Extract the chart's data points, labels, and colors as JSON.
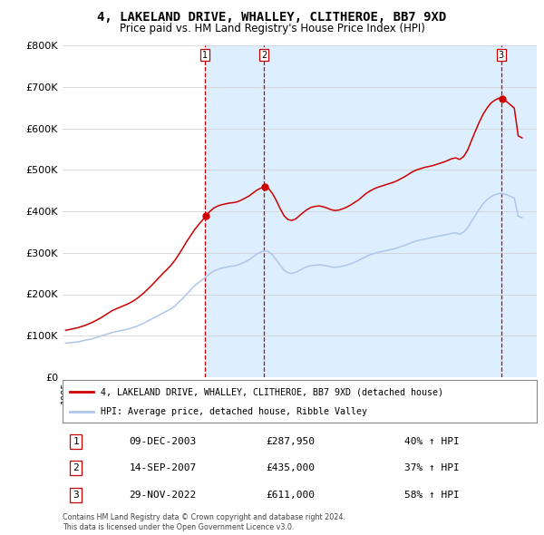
{
  "title": "4, LAKELAND DRIVE, WHALLEY, CLITHEROE, BB7 9XD",
  "subtitle": "Price paid vs. HM Land Registry's House Price Index (HPI)",
  "legend_property": "4, LAKELAND DRIVE, WHALLEY, CLITHEROE, BB7 9XD (detached house)",
  "legend_hpi": "HPI: Average price, detached house, Ribble Valley",
  "footer1": "Contains HM Land Registry data © Crown copyright and database right 2024.",
  "footer2": "This data is licensed under the Open Government Licence v3.0.",
  "transactions": [
    {
      "num": 1,
      "date": "09-DEC-2003",
      "price": "£287,950",
      "hpi": "40% ↑ HPI",
      "year": 2003.92
    },
    {
      "num": 2,
      "date": "14-SEP-2007",
      "price": "£435,000",
      "hpi": "37% ↑ HPI",
      "year": 2007.71
    },
    {
      "num": 3,
      "date": "29-NOV-2022",
      "price": "£611,000",
      "hpi": "58% ↑ HPI",
      "year": 2022.91
    }
  ],
  "hpi_color": "#aec6e8",
  "property_color": "#cc0000",
  "vline_color": "#cc0000",
  "shade_color": "#ddeeff",
  "ylim": [
    0,
    800000
  ],
  "yticks": [
    0,
    100000,
    200000,
    300000,
    400000,
    500000,
    600000,
    700000,
    800000
  ],
  "ytick_labels": [
    "£0",
    "£100K",
    "£200K",
    "£300K",
    "£400K",
    "£500K",
    "£600K",
    "£700K",
    "£800K"
  ],
  "hpi_data_x": [
    1995.0,
    1995.25,
    1995.5,
    1995.75,
    1996.0,
    1996.25,
    1996.5,
    1996.75,
    1997.0,
    1997.25,
    1997.5,
    1997.75,
    1998.0,
    1998.25,
    1998.5,
    1998.75,
    1999.0,
    1999.25,
    1999.5,
    1999.75,
    2000.0,
    2000.25,
    2000.5,
    2000.75,
    2001.0,
    2001.25,
    2001.5,
    2001.75,
    2002.0,
    2002.25,
    2002.5,
    2002.75,
    2003.0,
    2003.25,
    2003.5,
    2003.75,
    2004.0,
    2004.25,
    2004.5,
    2004.75,
    2005.0,
    2005.25,
    2005.5,
    2005.75,
    2006.0,
    2006.25,
    2006.5,
    2006.75,
    2007.0,
    2007.25,
    2007.5,
    2007.75,
    2008.0,
    2008.25,
    2008.5,
    2008.75,
    2009.0,
    2009.25,
    2009.5,
    2009.75,
    2010.0,
    2010.25,
    2010.5,
    2010.75,
    2011.0,
    2011.25,
    2011.5,
    2011.75,
    2012.0,
    2012.25,
    2012.5,
    2012.75,
    2013.0,
    2013.25,
    2013.5,
    2013.75,
    2014.0,
    2014.25,
    2014.5,
    2014.75,
    2015.0,
    2015.25,
    2015.5,
    2015.75,
    2016.0,
    2016.25,
    2016.5,
    2016.75,
    2017.0,
    2017.25,
    2017.5,
    2017.75,
    2018.0,
    2018.25,
    2018.5,
    2018.75,
    2019.0,
    2019.25,
    2019.5,
    2019.75,
    2020.0,
    2020.25,
    2020.5,
    2020.75,
    2021.0,
    2021.25,
    2021.5,
    2021.75,
    2022.0,
    2022.25,
    2022.5,
    2022.75,
    2023.0,
    2023.25,
    2023.5,
    2023.75,
    2024.0,
    2024.25
  ],
  "hpi_data_y": [
    82000,
    83000,
    84000,
    85000,
    87000,
    89000,
    91000,
    93000,
    96000,
    99000,
    102000,
    105000,
    108000,
    110000,
    112000,
    114000,
    116000,
    119000,
    122000,
    126000,
    130000,
    135000,
    140000,
    145000,
    150000,
    155000,
    160000,
    165000,
    172000,
    181000,
    190000,
    200000,
    210000,
    220000,
    228000,
    235000,
    242000,
    250000,
    256000,
    260000,
    263000,
    265000,
    267000,
    268000,
    270000,
    274000,
    278000,
    283000,
    290000,
    297000,
    302000,
    305000,
    303000,
    295000,
    283000,
    270000,
    258000,
    252000,
    250000,
    253000,
    258000,
    263000,
    267000,
    269000,
    270000,
    271000,
    270000,
    268000,
    266000,
    265000,
    266000,
    268000,
    270000,
    273000,
    277000,
    281000,
    286000,
    291000,
    295000,
    298000,
    301000,
    303000,
    305000,
    307000,
    309000,
    312000,
    315000,
    318000,
    322000,
    326000,
    329000,
    331000,
    333000,
    335000,
    337000,
    339000,
    341000,
    343000,
    345000,
    347000,
    348000,
    345000,
    350000,
    360000,
    375000,
    390000,
    405000,
    418000,
    428000,
    435000,
    440000,
    443000,
    443000,
    440000,
    436000,
    432000,
    388000,
    385000
  ],
  "property_data_x": [
    1995.0,
    1995.25,
    1995.5,
    1995.75,
    1996.0,
    1996.25,
    1996.5,
    1996.75,
    1997.0,
    1997.25,
    1997.5,
    1997.75,
    1998.0,
    1998.25,
    1998.5,
    1998.75,
    1999.0,
    1999.25,
    1999.5,
    1999.75,
    2000.0,
    2000.25,
    2000.5,
    2000.75,
    2001.0,
    2001.25,
    2001.5,
    2001.75,
    2002.0,
    2002.25,
    2002.5,
    2002.75,
    2003.0,
    2003.25,
    2003.5,
    2003.75,
    2004.0,
    2004.25,
    2004.5,
    2004.75,
    2005.0,
    2005.25,
    2005.5,
    2005.75,
    2006.0,
    2006.25,
    2006.5,
    2006.75,
    2007.0,
    2007.25,
    2007.5,
    2007.75,
    2008.0,
    2008.25,
    2008.5,
    2008.75,
    2009.0,
    2009.25,
    2009.5,
    2009.75,
    2010.0,
    2010.25,
    2010.5,
    2010.75,
    2011.0,
    2011.25,
    2011.5,
    2011.75,
    2012.0,
    2012.25,
    2012.5,
    2012.75,
    2013.0,
    2013.25,
    2013.5,
    2013.75,
    2014.0,
    2014.25,
    2014.5,
    2014.75,
    2015.0,
    2015.25,
    2015.5,
    2015.75,
    2016.0,
    2016.25,
    2016.5,
    2016.75,
    2017.0,
    2017.25,
    2017.5,
    2017.75,
    2018.0,
    2018.25,
    2018.5,
    2018.75,
    2019.0,
    2019.25,
    2019.5,
    2019.75,
    2020.0,
    2020.25,
    2020.5,
    2020.75,
    2021.0,
    2021.25,
    2021.5,
    2021.75,
    2022.0,
    2022.25,
    2022.5,
    2022.75,
    2023.0,
    2023.25,
    2023.5,
    2023.75,
    2024.0,
    2024.25
  ],
  "property_data_y": [
    113000,
    115000,
    117000,
    119000,
    122000,
    125000,
    129000,
    133000,
    138000,
    143000,
    149000,
    155000,
    161000,
    165000,
    169000,
    173000,
    177000,
    182000,
    188000,
    195000,
    203000,
    212000,
    221000,
    231000,
    241000,
    251000,
    260000,
    270000,
    282000,
    296000,
    311000,
    327000,
    341000,
    355000,
    367000,
    378000,
    390000,
    400000,
    408000,
    413000,
    416000,
    418000,
    420000,
    421000,
    423000,
    427000,
    432000,
    437000,
    444000,
    451000,
    456000,
    459000,
    455000,
    443000,
    426000,
    406000,
    389000,
    380000,
    378000,
    382000,
    390000,
    398000,
    405000,
    410000,
    412000,
    413000,
    411000,
    408000,
    404000,
    402000,
    403000,
    406000,
    410000,
    415000,
    421000,
    427000,
    435000,
    443000,
    449000,
    454000,
    458000,
    461000,
    464000,
    467000,
    470000,
    474000,
    479000,
    484000,
    490000,
    496000,
    500000,
    503000,
    506000,
    508000,
    510000,
    513000,
    516000,
    519000,
    523000,
    527000,
    529000,
    525000,
    532000,
    547000,
    570000,
    593000,
    615000,
    634000,
    649000,
    661000,
    668000,
    673000,
    671000,
    665000,
    657000,
    649000,
    582000,
    577000
  ],
  "xmin": 1994.8,
  "xmax": 2025.2
}
